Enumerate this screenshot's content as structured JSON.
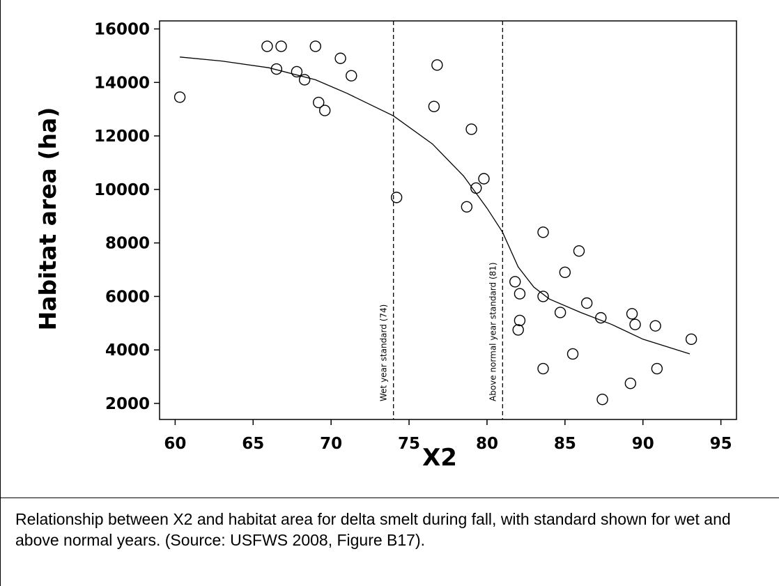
{
  "caption": "Relationship between X2 and habitat area for delta smelt during fall, with standard shown for wet and above normal years. (Source: USFWS 2008, Figure B17).",
  "chart_data": {
    "type": "scatter",
    "xlabel": "X2",
    "ylabel": "Habitat area (ha)",
    "xlim": [
      59,
      96
    ],
    "ylim": [
      1400,
      16300
    ],
    "x_ticks": [
      60,
      65,
      70,
      75,
      80,
      85,
      90,
      95
    ],
    "y_ticks": [
      2000,
      4000,
      6000,
      8000,
      10000,
      12000,
      14000,
      16000
    ],
    "grid": false,
    "points": [
      {
        "x": 60.3,
        "y": 13450
      },
      {
        "x": 65.9,
        "y": 15350
      },
      {
        "x": 66.8,
        "y": 15350
      },
      {
        "x": 66.5,
        "y": 14500
      },
      {
        "x": 67.8,
        "y": 14400
      },
      {
        "x": 68.3,
        "y": 14100
      },
      {
        "x": 69.0,
        "y": 15350
      },
      {
        "x": 69.2,
        "y": 13250
      },
      {
        "x": 69.6,
        "y": 12950
      },
      {
        "x": 70.6,
        "y": 14900
      },
      {
        "x": 71.3,
        "y": 14250
      },
      {
        "x": 74.2,
        "y": 9700
      },
      {
        "x": 76.6,
        "y": 13100
      },
      {
        "x": 76.8,
        "y": 14650
      },
      {
        "x": 78.7,
        "y": 9350
      },
      {
        "x": 79.0,
        "y": 12250
      },
      {
        "x": 79.3,
        "y": 10050
      },
      {
        "x": 79.8,
        "y": 10400
      },
      {
        "x": 81.8,
        "y": 6550
      },
      {
        "x": 82.0,
        "y": 4750
      },
      {
        "x": 82.1,
        "y": 5100
      },
      {
        "x": 82.1,
        "y": 6100
      },
      {
        "x": 83.6,
        "y": 8400
      },
      {
        "x": 83.6,
        "y": 6000
      },
      {
        "x": 83.6,
        "y": 3300
      },
      {
        "x": 84.7,
        "y": 5400
      },
      {
        "x": 85.0,
        "y": 6900
      },
      {
        "x": 85.5,
        "y": 3850
      },
      {
        "x": 85.9,
        "y": 7700
      },
      {
        "x": 86.4,
        "y": 5750
      },
      {
        "x": 87.3,
        "y": 5200
      },
      {
        "x": 87.4,
        "y": 2150
      },
      {
        "x": 89.2,
        "y": 2750
      },
      {
        "x": 89.3,
        "y": 5350
      },
      {
        "x": 89.5,
        "y": 4950
      },
      {
        "x": 90.8,
        "y": 4900
      },
      {
        "x": 90.9,
        "y": 3300
      },
      {
        "x": 93.1,
        "y": 4400
      }
    ],
    "fit_line": [
      {
        "x": 60.3,
        "y": 14950
      },
      {
        "x": 63,
        "y": 14800
      },
      {
        "x": 66,
        "y": 14550
      },
      {
        "x": 69,
        "y": 14100
      },
      {
        "x": 71,
        "y": 13600
      },
      {
        "x": 74,
        "y": 12750
      },
      {
        "x": 76.5,
        "y": 11700
      },
      {
        "x": 78.5,
        "y": 10500
      },
      {
        "x": 80,
        "y": 9300
      },
      {
        "x": 81,
        "y": 8400
      },
      {
        "x": 82,
        "y": 7100
      },
      {
        "x": 83,
        "y": 6350
      },
      {
        "x": 84,
        "y": 5900
      },
      {
        "x": 86,
        "y": 5400
      },
      {
        "x": 88,
        "y": 4950
      },
      {
        "x": 90,
        "y": 4400
      },
      {
        "x": 93,
        "y": 3850
      }
    ],
    "reference_lines": [
      {
        "x": 74,
        "label": "Wet year standard (74)"
      },
      {
        "x": 81,
        "label": "Above normal year standard (81)"
      }
    ]
  }
}
